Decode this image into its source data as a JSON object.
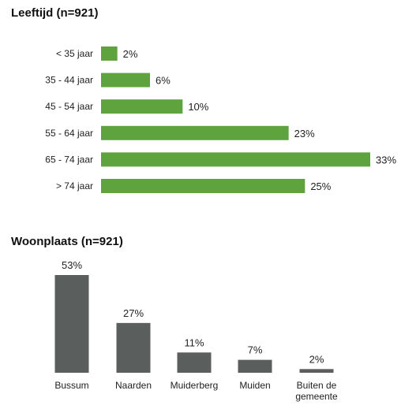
{
  "chart_data": [
    {
      "type": "bar",
      "orientation": "horizontal",
      "title": "Leeftijd (n=921)",
      "categories": [
        "< 35 jaar",
        "35 - 44 jaar",
        "45 - 54 jaar",
        "55 - 64 jaar",
        "65 - 74 jaar",
        "> 74 jaar"
      ],
      "values": [
        2,
        6,
        10,
        23,
        33,
        25
      ],
      "value_labels": [
        "2%",
        "6%",
        "10%",
        "23%",
        "33%",
        "25%"
      ],
      "unit": "%",
      "color": "#5fa33e",
      "grid": false
    },
    {
      "type": "bar",
      "orientation": "vertical",
      "title": "Woonplaats (n=921)",
      "categories": [
        "Bussum",
        "Naarden",
        "Muiderberg",
        "Muiden",
        "Buiten de gemeente"
      ],
      "category_lines": [
        [
          "Bussum"
        ],
        [
          "Naarden"
        ],
        [
          "Muiderberg"
        ],
        [
          "Muiden"
        ],
        [
          "Buiten de",
          "gemeente"
        ]
      ],
      "values": [
        53,
        27,
        11,
        7,
        2
      ],
      "value_labels": [
        "53%",
        "27%",
        "11%",
        "7%",
        "2%"
      ],
      "unit": "%",
      "color": "#5a5f5e",
      "grid": false
    }
  ]
}
